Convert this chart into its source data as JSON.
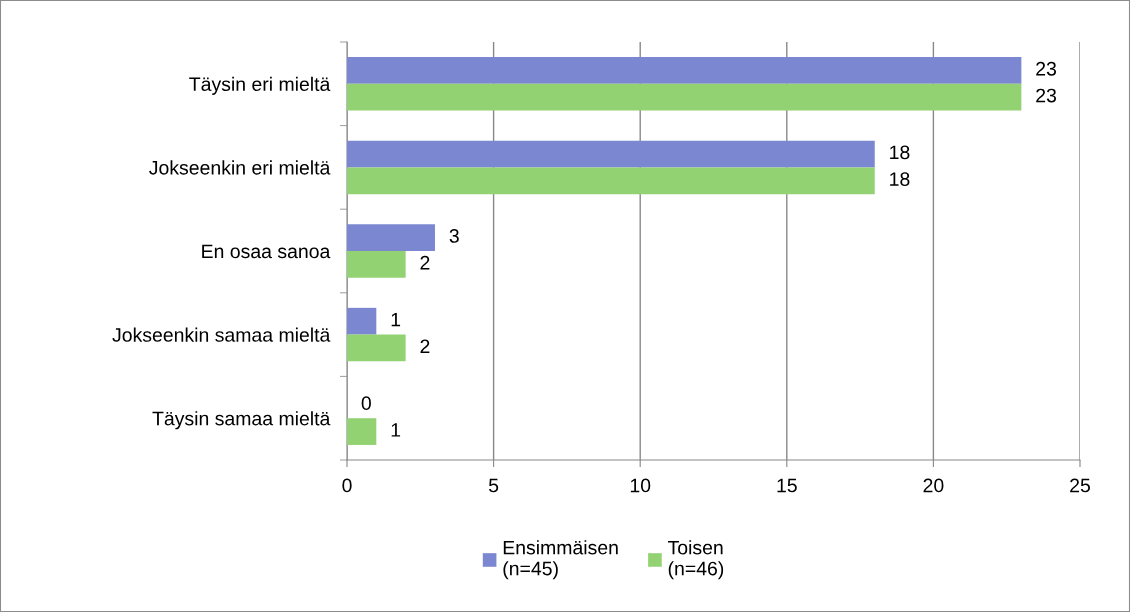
{
  "chart_data": {
    "type": "bar",
    "orientation": "horizontal",
    "categories": [
      "Täysin eri mieltä",
      "Jokseenkin eri mieltä",
      "En osaa sanoa",
      "Jokseenkin samaa mieltä",
      "Täysin samaa mieltä"
    ],
    "series": [
      {
        "name": "Ensimmäisen\n(n=45)",
        "color": "#7b87d0",
        "values": [
          23,
          18,
          3,
          1,
          0
        ]
      },
      {
        "name": "Toisen\n(n=46)",
        "color": "#93d273",
        "values": [
          23,
          18,
          2,
          2,
          1
        ]
      }
    ],
    "xlim": [
      0,
      25
    ],
    "xticks": [
      0,
      5,
      10,
      15,
      20,
      25
    ],
    "grid": "x",
    "legend": "bottom",
    "data_labels": true
  }
}
